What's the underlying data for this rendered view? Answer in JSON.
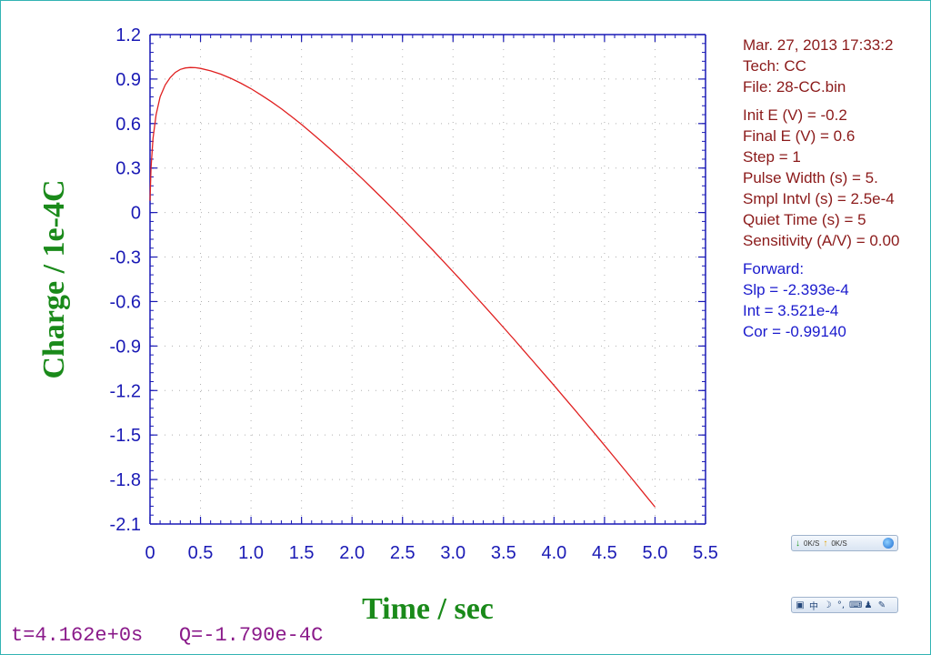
{
  "chart_data": {
    "type": "line",
    "xlabel": "Time / sec",
    "ylabel": "Charge / 1e-4C",
    "xlim": [
      0,
      5.5
    ],
    "ylim": [
      -2.1,
      1.2
    ],
    "grid": true,
    "x_ticks": [
      "0",
      "0.5",
      "1.0",
      "1.5",
      "2.0",
      "2.5",
      "3.0",
      "3.5",
      "4.0",
      "4.5",
      "5.0",
      "5.5"
    ],
    "y_ticks": [
      "1.2",
      "0.9",
      "0.6",
      "0.3",
      "0",
      "-0.3",
      "-0.6",
      "-0.9",
      "-1.2",
      "-1.5",
      "-1.8",
      "-2.1"
    ],
    "line_color": "#e02020",
    "series": [
      {
        "x": [
          0,
          0.01,
          0.03,
          0.06,
          0.1,
          0.15,
          0.2,
          0.25,
          0.3,
          0.35,
          0.4,
          0.45,
          0.5,
          0.6,
          0.7,
          0.8,
          0.9,
          1.0,
          1.1,
          1.2,
          1.3,
          1.4,
          1.5,
          1.6,
          1.7,
          1.8,
          1.9,
          2.0,
          2.1,
          2.2,
          2.3,
          2.4,
          2.5,
          2.6,
          2.7,
          2.8,
          2.9,
          3.0,
          3.1,
          3.2,
          3.3,
          3.4,
          3.5,
          3.6,
          3.7,
          3.8,
          3.9,
          4.0,
          4.1,
          4.2,
          4.3,
          4.4,
          4.5,
          4.6,
          4.7,
          4.8,
          4.9,
          5.0
        ],
        "y": [
          0.08,
          0.3,
          0.5,
          0.66,
          0.78,
          0.86,
          0.91,
          0.945,
          0.965,
          0.975,
          0.978,
          0.977,
          0.972,
          0.955,
          0.933,
          0.905,
          0.872,
          0.835,
          0.793,
          0.748,
          0.7,
          0.648,
          0.594,
          0.537,
          0.478,
          0.418,
          0.356,
          0.293,
          0.229,
          0.163,
          0.096,
          0.028,
          -0.041,
          -0.111,
          -0.182,
          -0.254,
          -0.326,
          -0.399,
          -0.473,
          -0.548,
          -0.623,
          -0.699,
          -0.775,
          -0.852,
          -0.93,
          -1.008,
          -1.087,
          -1.166,
          -1.246,
          -1.326,
          -1.407,
          -1.488,
          -1.57,
          -1.652,
          -1.735,
          -1.818,
          -1.902,
          -1.986
        ]
      }
    ]
  },
  "info": {
    "header": [
      "Mar. 27, 2013    17:33:2",
      "Tech: CC",
      "File: 28-CC.bin"
    ],
    "params": [
      "Init E (V) = -0.2",
      "Final E (V) = 0.6",
      "Step = 1",
      "Pulse Width (s) = 5.",
      "Smpl Intvl (s) = 2.5e-4",
      "Quiet Time (s) = 5",
      "Sensitivity (A/V) = 0.00"
    ],
    "fit": [
      "Forward:",
      "Slp = -2.393e-4",
      "Int = 3.521e-4",
      "Cor = -0.99140"
    ]
  },
  "status": {
    "t_readout": "t=4.162e+0s",
    "q_readout": "Q=-1.790e-4C"
  },
  "net_widget": {
    "down_rate": "0K/S",
    "up_rate": "0K/S"
  },
  "ime_bar": {
    "lang": "中"
  }
}
